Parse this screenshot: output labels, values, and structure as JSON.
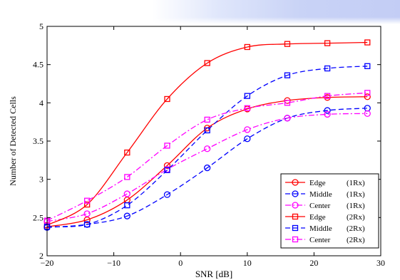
{
  "chart_data": {
    "type": "line",
    "title": "",
    "xlabel": "SNR [dB]",
    "ylabel": "Number of Detected Cells",
    "xlim": [
      -20,
      30
    ],
    "ylim": [
      2,
      5
    ],
    "xticks": [
      -20,
      -10,
      0,
      10,
      20,
      30
    ],
    "yticks": [
      2,
      2.5,
      3,
      3.5,
      4,
      4.5,
      5
    ],
    "xtick_labels": [
      "−20",
      "−10",
      "0",
      "10",
      "20",
      "30"
    ],
    "ytick_labels": [
      "2",
      "2.5",
      "3",
      "3.5",
      "4",
      "4.5",
      "5"
    ],
    "legend_position": "bottom-right",
    "grid": false,
    "x": [
      -20,
      -14,
      -8,
      -2,
      4,
      10,
      16,
      22,
      28
    ],
    "series": [
      {
        "name": "Edge",
        "tag": "(1Rx)",
        "color": "#ff0000",
        "dash": "solid",
        "marker": "circle",
        "values": [
          2.38,
          2.47,
          2.73,
          3.18,
          3.67,
          3.92,
          4.03,
          4.07,
          4.08
        ]
      },
      {
        "name": "Middle",
        "tag": "(1Rx)",
        "color": "#0000ff",
        "dash": "dashed",
        "marker": "circle",
        "values": [
          2.37,
          2.41,
          2.52,
          2.8,
          3.15,
          3.53,
          3.8,
          3.9,
          3.93
        ]
      },
      {
        "name": "Center",
        "tag": "(1Rx)",
        "color": "#ff00ff",
        "dash": "dashdot",
        "marker": "circle",
        "values": [
          2.45,
          2.55,
          2.81,
          3.13,
          3.4,
          3.65,
          3.8,
          3.85,
          3.86
        ]
      },
      {
        "name": "Edge",
        "tag": "(2Rx)",
        "color": "#ff0000",
        "dash": "solid",
        "marker": "square",
        "values": [
          2.4,
          2.67,
          3.35,
          4.05,
          4.52,
          4.73,
          4.77,
          4.78,
          4.79
        ]
      },
      {
        "name": "Middle",
        "tag": "(2Rx)",
        "color": "#0000ff",
        "dash": "dashed",
        "marker": "square",
        "values": [
          2.38,
          2.41,
          2.66,
          3.12,
          3.64,
          4.09,
          4.36,
          4.45,
          4.48
        ]
      },
      {
        "name": "Center",
        "tag": "(2Rx)",
        "color": "#ff00ff",
        "dash": "dashdot",
        "marker": "square",
        "values": [
          2.46,
          2.72,
          3.03,
          3.44,
          3.78,
          3.93,
          4.0,
          4.09,
          4.13
        ]
      }
    ]
  }
}
